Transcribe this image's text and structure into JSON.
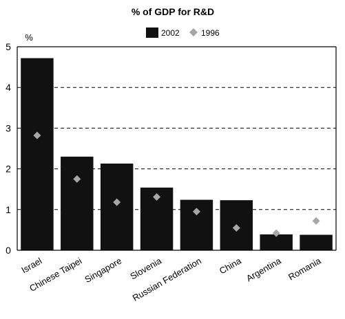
{
  "chart_data": {
    "type": "bar",
    "title": "% of GDP for R&D",
    "ylabel": "%",
    "xlabel": "",
    "ylim": [
      0,
      5
    ],
    "yticks": [
      "0",
      "1",
      "2",
      "3",
      "4",
      "5"
    ],
    "grid": "dashed horizontal",
    "legend_position": "top-center",
    "categories": [
      "Israel",
      "Chinese Taipei",
      "Singapore",
      "Slovenia",
      "Russian Federation",
      "China",
      "Argentina",
      "Romania"
    ],
    "series": [
      {
        "name": "2002",
        "kind": "bar",
        "color": "#111111",
        "values": [
          4.72,
          2.3,
          2.13,
          1.54,
          1.24,
          1.23,
          0.39,
          0.38
        ]
      },
      {
        "name": "1996",
        "kind": "marker",
        "marker": "diamond",
        "color": "#a6a6a6",
        "values": [
          2.82,
          1.75,
          1.18,
          1.31,
          0.95,
          0.55,
          0.42,
          0.72
        ]
      }
    ]
  }
}
